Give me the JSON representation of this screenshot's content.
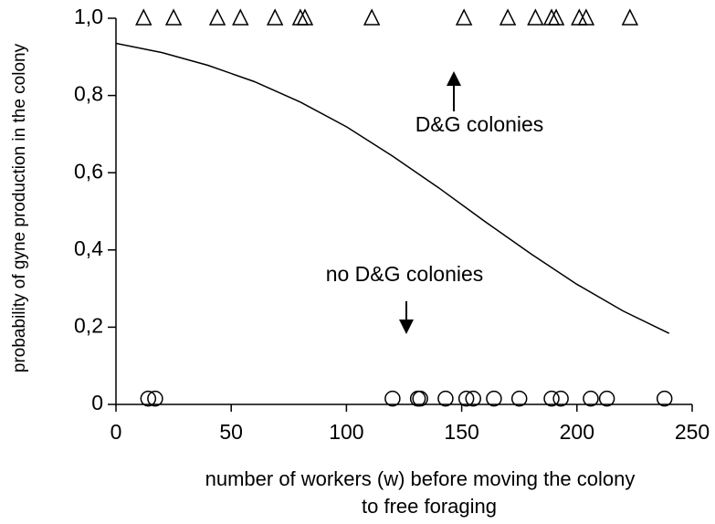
{
  "chart_data": {
    "type": "scatter",
    "x_label": [
      "number of workers (w) before moving the colony",
      "to  free foraging"
    ],
    "y_label": "probability of gyne production in the colony",
    "annotations": [
      "D&G colonies",
      "no D&G colonies"
    ],
    "xlim": [
      0,
      250
    ],
    "ylim": [
      0,
      1.0
    ],
    "xticks": [
      0,
      50,
      100,
      150,
      200,
      250
    ],
    "yticks": [
      0,
      {
        "value": 0.2,
        "label": "0,2"
      },
      {
        "value": 0.4,
        "label": "0,4"
      },
      {
        "value": 0.6,
        "label": "0,6"
      },
      {
        "value": 0.8,
        "label": "0,8"
      },
      {
        "value": 1.0,
        "label": "1,0"
      }
    ],
    "series": [
      {
        "marker": "triangle",
        "color": "#000000",
        "x": [
          12,
          25,
          44,
          54,
          69,
          80,
          82,
          111,
          151,
          170,
          182,
          189,
          191,
          201,
          204,
          223
        ],
        "values": [
          1.0,
          1.0,
          1.0,
          1.0,
          1.0,
          1.0,
          1.0,
          1.0,
          1.0,
          1.0,
          1.0,
          1.0,
          1.0,
          1.0,
          1.0,
          1.0
        ]
      },
      {
        "marker": "circle",
        "color": "#000000",
        "x": [
          14,
          17,
          120,
          131,
          132,
          143,
          152,
          155,
          164,
          175,
          189,
          193,
          206,
          213,
          238
        ],
        "values": [
          0.015,
          0.015,
          0.015,
          0.015,
          0.015,
          0.015,
          0.015,
          0.015,
          0.015,
          0.015,
          0.015,
          0.015,
          0.015,
          0.015,
          0.015
        ]
      },
      {
        "marker": "line",
        "color": "#000000",
        "x": [
          0,
          20,
          40,
          60,
          80,
          100,
          120,
          140,
          160,
          180,
          200,
          220,
          240
        ],
        "values": [
          0.935,
          0.911,
          0.878,
          0.836,
          0.783,
          0.719,
          0.643,
          0.561,
          0.474,
          0.39,
          0.311,
          0.242,
          0.184
        ]
      }
    ]
  }
}
